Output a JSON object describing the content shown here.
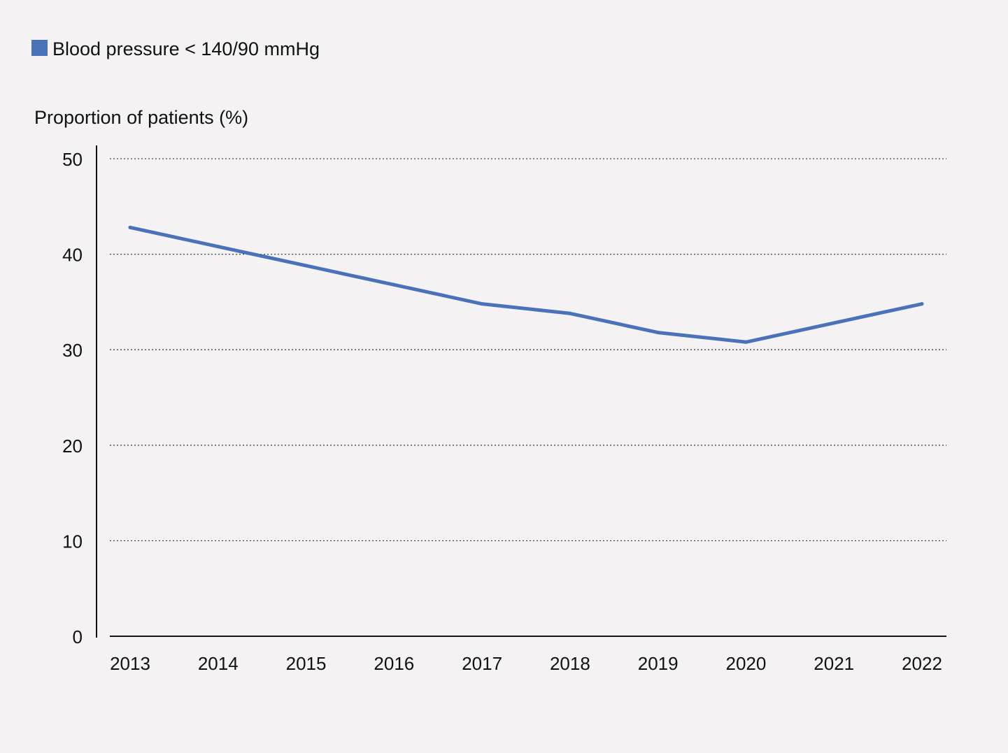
{
  "chart_data": {
    "type": "line",
    "ylabel": "Proportion of patients (%)",
    "xlabel": "",
    "categories": [
      "2013",
      "2014",
      "2015",
      "2016",
      "2017",
      "2018",
      "2019",
      "2020",
      "2021",
      "2022"
    ],
    "series": [
      {
        "name": "Blood pressure < 140/90 mmHg",
        "color": "#4a72b8",
        "values": [
          42.8,
          40.8,
          38.8,
          36.8,
          34.8,
          33.8,
          31.8,
          30.8,
          32.8,
          34.8
        ]
      }
    ],
    "ylim": [
      0,
      50
    ],
    "yticks": [
      0,
      10,
      20,
      30,
      40,
      50
    ],
    "grid": true,
    "legend": "top-left"
  }
}
